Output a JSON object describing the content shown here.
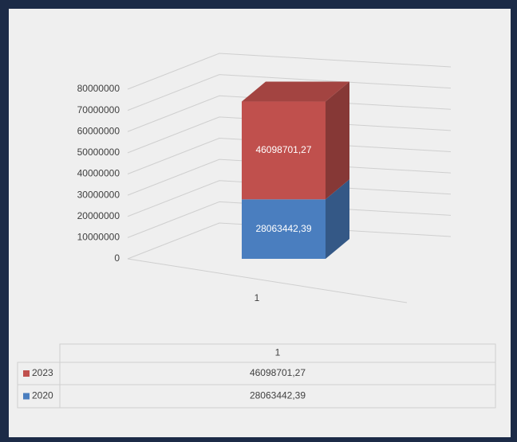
{
  "chart_data": {
    "type": "bar3d_stacked",
    "categories": [
      "1"
    ],
    "series": [
      {
        "name": "2020",
        "color": "#4a7ebf",
        "values": [
          28063442.39
        ],
        "value_labels": [
          "28063442,39"
        ]
      },
      {
        "name": "2023",
        "color": "#c0504d",
        "values": [
          46098701.27
        ],
        "value_labels": [
          "46098701,27"
        ]
      }
    ],
    "ylim": [
      0,
      80000000
    ],
    "yticks": [
      0,
      10000000,
      20000000,
      30000000,
      40000000,
      50000000,
      60000000,
      70000000,
      80000000
    ],
    "grid": true,
    "data_table": true
  }
}
